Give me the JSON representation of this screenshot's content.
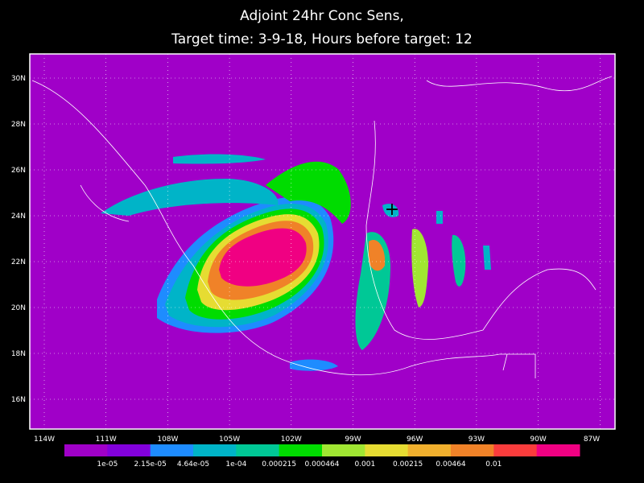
{
  "title": [
    "Adjoint 24hr Conc Sens,",
    "Target time: 3-9-18, Hours before target: 12"
  ],
  "map": {
    "background": "#a000c8",
    "lat_labels": [
      "30N",
      "28N",
      "26N",
      "24N",
      "22N",
      "20N",
      "18N",
      "16N"
    ],
    "lon_labels": [
      "114W",
      "111W",
      "108W",
      "105W",
      "102W",
      "99W",
      "96W",
      "93W",
      "90W",
      "87W"
    ]
  },
  "colorbar": {
    "colors": [
      "#a000c8",
      "#8200dc",
      "#1e8cff",
      "#00b4c8",
      "#00c896",
      "#00dc00",
      "#a0e632",
      "#e6dc32",
      "#f0af2d",
      "#f08228",
      "#fa3c3c",
      "#f00082"
    ],
    "labels": [
      "1e-05",
      "2.15e-05",
      "4.64e-05",
      "1e-04",
      "0.000215",
      "0.000464",
      "0.001",
      "0.00215",
      "0.00464",
      "0.01"
    ]
  }
}
